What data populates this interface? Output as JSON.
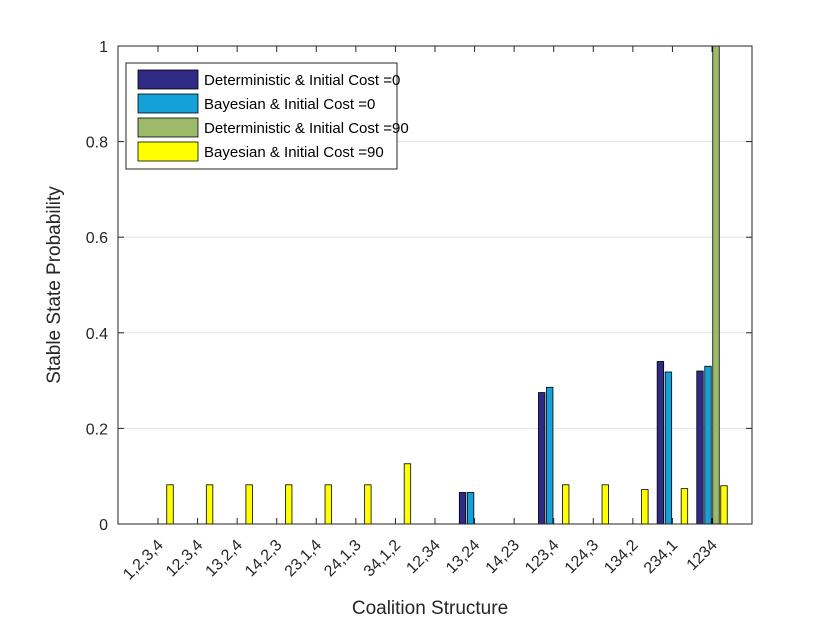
{
  "chart_data": {
    "type": "bar",
    "xlabel": "Coalition Structure",
    "ylabel": "Stable State Probability",
    "ylim": [
      0,
      1
    ],
    "yticks": [
      0,
      0.2,
      0.4,
      0.6,
      0.8,
      1
    ],
    "ytick_labels": [
      "0",
      "0.2",
      "0.4",
      "0.6",
      "0.8",
      "1"
    ],
    "grid": "horizontal",
    "legend_position": "top-left",
    "categories": [
      "1,2,3,4",
      "12,3,4",
      "13,2,4",
      "14,2,3",
      "23,1,4",
      "24,1,3",
      "34,1,2",
      "12,34",
      "13,24",
      "14,23",
      "123,4",
      "124,3",
      "134,2",
      "234,1",
      "1234"
    ],
    "series": [
      {
        "name": "Deterministic & Initial Cost =0",
        "color": "#2e2a86",
        "values": [
          0,
          0,
          0,
          0,
          0,
          0,
          0,
          0,
          0.066,
          0,
          0.275,
          0,
          0,
          0.34,
          0.32
        ]
      },
      {
        "name": "Bayesian & Initial Cost =0",
        "color": "#14a0d8",
        "values": [
          0,
          0,
          0,
          0,
          0,
          0,
          0,
          0,
          0.066,
          0,
          0.286,
          0,
          0,
          0.318,
          0.33
        ]
      },
      {
        "name": "Deterministic & Initial Cost =90",
        "color": "#9cba6a",
        "values": [
          0,
          0,
          0,
          0,
          0,
          0,
          0,
          0,
          0,
          0,
          0,
          0,
          0,
          0,
          1.0
        ]
      },
      {
        "name": "Bayesian & Initial Cost =90",
        "color": "#ffff00",
        "values": [
          0.082,
          0.082,
          0.082,
          0.082,
          0.082,
          0.082,
          0.126,
          0,
          0,
          0,
          0.082,
          0.082,
          0.072,
          0.074,
          0.08
        ]
      }
    ]
  }
}
